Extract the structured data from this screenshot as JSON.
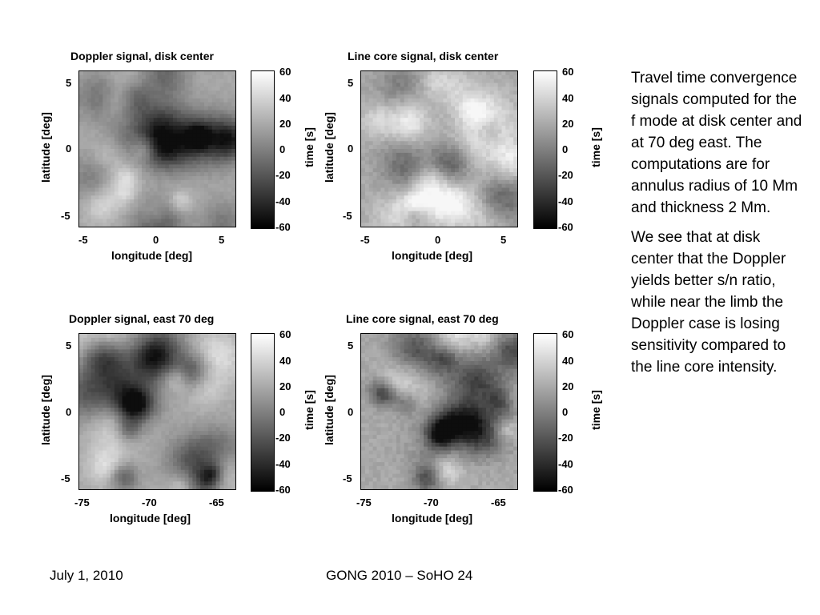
{
  "charts": [
    {
      "type": "heatmap",
      "title": "Doppler signal, disk center",
      "xlabel": "longitude [deg]",
      "ylabel": "latitude [deg]",
      "xticks": [
        "-5",
        "0",
        "5"
      ],
      "xtick_values": [
        -5,
        0,
        5
      ],
      "xlim": [
        -6,
        6
      ],
      "yticks": [
        "5",
        "0",
        "-5"
      ],
      "ytick_values": [
        5,
        0,
        -5
      ],
      "ylim": [
        -6,
        6
      ],
      "colorbar": {
        "label": "time [s]",
        "ticks": [
          "60",
          "40",
          "20",
          "0",
          "-20",
          "-40",
          "-60"
        ],
        "tick_values": [
          60,
          40,
          20,
          0,
          -20,
          -40,
          -60
        ],
        "range": [
          -60,
          60
        ]
      }
    },
    {
      "type": "heatmap",
      "title": "Line core signal, disk center",
      "xlabel": "longitude [deg]",
      "ylabel": "latitude [deg]",
      "xticks": [
        "-5",
        "0",
        "5"
      ],
      "xtick_values": [
        -5,
        0,
        5
      ],
      "xlim": [
        -6,
        6
      ],
      "yticks": [
        "5",
        "0",
        "-5"
      ],
      "ytick_values": [
        5,
        0,
        -5
      ],
      "ylim": [
        -6,
        6
      ],
      "colorbar": {
        "label": "time [s]",
        "ticks": [
          "60",
          "40",
          "20",
          "0",
          "-20",
          "-40",
          "-60"
        ],
        "tick_values": [
          60,
          40,
          20,
          0,
          -20,
          -40,
          -60
        ],
        "range": [
          -60,
          60
        ]
      }
    },
    {
      "type": "heatmap",
      "title": "Doppler signal, east 70 deg",
      "xlabel": "longitude [deg]",
      "ylabel": "latitude [deg]",
      "xticks": [
        "-75",
        "-70",
        "-65"
      ],
      "xtick_values": [
        -75,
        -70,
        -65
      ],
      "xlim": [
        -76,
        -64
      ],
      "yticks": [
        "5",
        "0",
        "-5"
      ],
      "ytick_values": [
        5,
        0,
        -5
      ],
      "ylim": [
        -6,
        6
      ],
      "colorbar": {
        "label": "time [s]",
        "ticks": [
          "60",
          "40",
          "20",
          "0",
          "-20",
          "-40",
          "-60"
        ],
        "tick_values": [
          60,
          40,
          20,
          0,
          -20,
          -40,
          -60
        ],
        "range": [
          -60,
          60
        ]
      }
    },
    {
      "type": "heatmap",
      "title": "Line core signal, east 70 deg",
      "xlabel": "longitude [deg]",
      "ylabel": "latitude [deg]",
      "xticks": [
        "-75",
        "-70",
        "-65"
      ],
      "xtick_values": [
        -75,
        -70,
        -65
      ],
      "xlim": [
        -76,
        -64
      ],
      "yticks": [
        "5",
        "0",
        "-5"
      ],
      "ytick_values": [
        5,
        0,
        -5
      ],
      "ylim": [
        -6,
        6
      ],
      "colorbar": {
        "label": "time [s]",
        "ticks": [
          "60",
          "40",
          "20",
          "0",
          "-20",
          "-40",
          "-60"
        ],
        "tick_values": [
          60,
          40,
          20,
          0,
          -20,
          -40,
          -60
        ],
        "range": [
          -60,
          60
        ]
      }
    }
  ],
  "side_text": {
    "paragraph1": "Travel time convergence signals computed for the f mode at disk center and at 70 deg east. The computations are for annulus radius of 10 Mm and thickness 2 Mm.",
    "paragraph2": "We see that at disk center that the Doppler yields better s/n ratio, while near the limb the Doppler case is losing sensitivity compared to the line core intensity."
  },
  "footer": {
    "date": "July 1, 2010",
    "conference": "GONG 2010 – SoHO 24"
  }
}
